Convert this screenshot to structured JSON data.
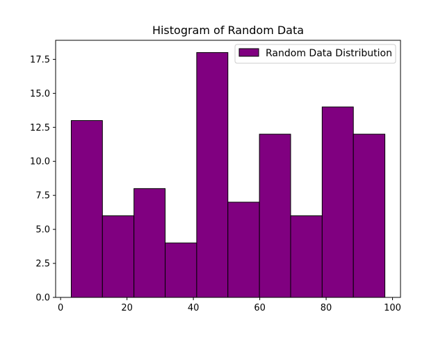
{
  "chart_data": {
    "type": "bar",
    "title": "Histogram of Random Data",
    "xlabel": "",
    "ylabel": "",
    "bins": [
      {
        "start": 3.2,
        "end": 12.6,
        "count": 13
      },
      {
        "start": 12.6,
        "end": 22.1,
        "count": 6
      },
      {
        "start": 22.1,
        "end": 31.5,
        "count": 8
      },
      {
        "start": 31.5,
        "end": 41.0,
        "count": 4
      },
      {
        "start": 41.0,
        "end": 50.4,
        "count": 18
      },
      {
        "start": 50.4,
        "end": 59.9,
        "count": 7
      },
      {
        "start": 59.9,
        "end": 69.3,
        "count": 12
      },
      {
        "start": 69.3,
        "end": 78.8,
        "count": 6
      },
      {
        "start": 78.8,
        "end": 88.2,
        "count": 14
      },
      {
        "start": 88.2,
        "end": 97.7,
        "count": 12
      }
    ],
    "series": [
      {
        "name": "Random Data Distribution",
        "color": "#800080",
        "edge_color": "#000000"
      }
    ],
    "xlim": [
      -1.5,
      102.4
    ],
    "ylim": [
      0,
      18.9
    ],
    "x_ticks": [
      0,
      20,
      40,
      60,
      80,
      100
    ],
    "x_tick_labels": [
      "0",
      "20",
      "40",
      "60",
      "80",
      "100"
    ],
    "y_ticks": [
      0,
      2.5,
      5,
      7.5,
      10,
      12.5,
      15,
      17.5
    ],
    "y_tick_labels": [
      "0.0",
      "2.5",
      "5.0",
      "7.5",
      "10.0",
      "12.5",
      "15.0",
      "17.5"
    ],
    "grid": false,
    "legend_position": "top-right"
  }
}
